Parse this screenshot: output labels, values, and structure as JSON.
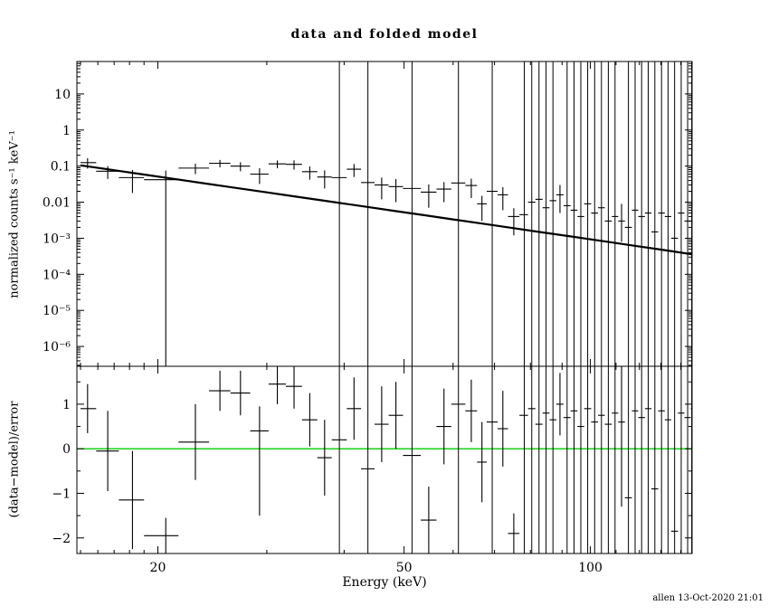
{
  "chart_data": {
    "type": "scatter",
    "title": "data and folded model",
    "xlabel": "Energy (keV)",
    "ylabel_top": "normalized counts s⁻¹ keV⁻¹",
    "ylabel_bottom": "(data−model)/error",
    "timestamp": "allen 13-Oct-2020 21:01",
    "x_scale": "log",
    "xlim": [
      14.8,
      146
    ],
    "xticks_major": [
      {
        "v": 20,
        "label": "20"
      },
      {
        "v": 50,
        "label": "50"
      },
      {
        "v": 100,
        "label": "100"
      }
    ],
    "xticks_minor": [
      15,
      16,
      17,
      18,
      19,
      30,
      40,
      60,
      70,
      80,
      90,
      110,
      120,
      130,
      140
    ],
    "top_panel": {
      "y_scale": "log",
      "ylim_log10": [
        -6.55,
        1.9
      ],
      "yticks": [
        {
          "v": 10,
          "label": "10"
        },
        {
          "v": 1,
          "label": "1"
        },
        {
          "v": 0.1,
          "label": "0.1"
        },
        {
          "v": 0.01,
          "label": "0.01"
        },
        {
          "v": 0.001,
          "label": "10⁻³"
        },
        {
          "v": 0.0001,
          "label": "10⁻⁴"
        },
        {
          "v": 1e-05,
          "label": "10⁻⁵"
        },
        {
          "v": 1e-06,
          "label": "10⁻⁶"
        }
      ],
      "model_points": [
        [
          15,
          0.105
        ],
        [
          17,
          0.0769
        ],
        [
          19,
          0.0583
        ],
        [
          21,
          0.0454
        ],
        [
          24,
          0.0326
        ],
        [
          27,
          0.0243
        ],
        [
          30,
          0.0187
        ],
        [
          34,
          0.0137
        ],
        [
          38,
          0.0104
        ],
        [
          43,
          0.00762
        ],
        [
          48,
          0.0058
        ],
        [
          54,
          0.00433
        ],
        [
          60,
          0.00333
        ],
        [
          67,
          0.00253
        ],
        [
          75,
          0.00191
        ],
        [
          84,
          0.00144
        ],
        [
          94,
          0.00109
        ],
        [
          105,
          0.000826
        ],
        [
          118,
          0.000617
        ],
        [
          132,
          0.000467
        ],
        [
          146,
          0.000358
        ]
      ]
    },
    "bottom_panel": {
      "ylim": [
        -2.35,
        1.85
      ],
      "yticks": [
        {
          "v": 1,
          "label": "1"
        },
        {
          "v": 0,
          "label": "0"
        },
        {
          "v": -1,
          "label": "−1"
        },
        {
          "v": -2,
          "label": "−2"
        }
      ],
      "yticks_minor": [
        -1.5,
        -0.5,
        0.5,
        1.5
      ],
      "zero_line_value": 0,
      "zero_line_color": "#00cc00"
    },
    "points_columns": [
      "x",
      "xlo",
      "xhi",
      "y",
      "ylo",
      "yhi",
      "y_err_offscale",
      "resid",
      "rlo",
      "rhi",
      "resid_err_offscale"
    ],
    "points": [
      [
        15.4,
        15.0,
        15.9,
        0.125,
        0.085,
        0.165,
        0,
        0.9,
        0.35,
        1.45,
        0
      ],
      [
        16.6,
        15.9,
        17.3,
        0.072,
        0.044,
        0.1,
        0,
        -0.05,
        -0.95,
        0.85,
        0
      ],
      [
        18.2,
        17.3,
        19.0,
        0.048,
        0.018,
        0.078,
        0,
        -1.15,
        -2.25,
        -0.05,
        0
      ],
      [
        20.6,
        19.0,
        21.6,
        0.042,
        1e-07,
        0.075,
        0,
        -1.95,
        -2.35,
        -1.55,
        0
      ],
      [
        23.0,
        21.6,
        24.2,
        0.088,
        0.06,
        0.116,
        0,
        0.15,
        -0.7,
        1.0,
        0
      ],
      [
        25.2,
        24.2,
        26.2,
        0.12,
        0.092,
        0.148,
        0,
        1.3,
        0.85,
        1.75,
        0
      ],
      [
        27.2,
        26.2,
        28.2,
        0.1,
        0.072,
        0.128,
        0,
        1.25,
        0.75,
        1.75,
        0
      ],
      [
        29.2,
        28.2,
        30.2,
        0.06,
        0.032,
        0.088,
        0,
        0.4,
        -1.5,
        0.95,
        0
      ],
      [
        31.2,
        30.2,
        32.2,
        0.115,
        0.087,
        0.143,
        0,
        1.45,
        1.0,
        1.85,
        0
      ],
      [
        33.2,
        32.2,
        34.2,
        0.112,
        0.08,
        0.144,
        0,
        1.4,
        0.9,
        1.85,
        0
      ],
      [
        35.2,
        34.2,
        36.2,
        0.07,
        0.042,
        0.098,
        0,
        0.65,
        0.05,
        1.25,
        0
      ],
      [
        37.2,
        36.2,
        38.2,
        0.05,
        0.024,
        0.076,
        0,
        -0.2,
        -1.05,
        0.65,
        0
      ],
      [
        39.3,
        38.2,
        40.4,
        0.048,
        null,
        null,
        1,
        0.2,
        null,
        null,
        1
      ],
      [
        41.5,
        40.4,
        42.6,
        0.082,
        0.05,
        0.114,
        0,
        0.9,
        0.2,
        1.6,
        0
      ],
      [
        43.7,
        42.6,
        44.8,
        0.035,
        null,
        null,
        1,
        -0.45,
        null,
        null,
        1
      ],
      [
        46.0,
        44.8,
        47.2,
        0.03,
        0.012,
        0.048,
        0,
        0.55,
        -0.3,
        1.4,
        0
      ],
      [
        48.5,
        47.2,
        49.8,
        0.027,
        0.01,
        0.044,
        0,
        0.75,
        0.0,
        1.5,
        0
      ],
      [
        51.5,
        49.8,
        53.2,
        0.024,
        null,
        null,
        1,
        -0.15,
        null,
        null,
        1
      ],
      [
        54.8,
        53.2,
        56.4,
        0.019,
        0.007,
        0.031,
        0,
        -1.6,
        -2.35,
        -0.85,
        0
      ],
      [
        58.0,
        56.4,
        59.6,
        0.023,
        0.01,
        0.036,
        0,
        0.5,
        -0.35,
        1.35,
        0
      ],
      [
        61.2,
        59.6,
        62.8,
        0.034,
        null,
        null,
        1,
        1.0,
        null,
        null,
        1
      ],
      [
        64.2,
        62.8,
        65.6,
        0.029,
        0.013,
        0.045,
        0,
        0.85,
        0.15,
        1.55,
        0
      ],
      [
        66.8,
        65.6,
        68.0,
        0.009,
        0.003,
        0.015,
        0,
        -0.3,
        -1.2,
        0.6,
        0
      ],
      [
        69.4,
        68.0,
        70.8,
        0.02,
        null,
        null,
        1,
        0.6,
        null,
        null,
        1
      ],
      [
        72.2,
        70.8,
        73.6,
        0.016,
        0.006,
        0.026,
        0,
        0.45,
        -0.4,
        1.3,
        0
      ],
      [
        75.2,
        73.6,
        76.8,
        0.004,
        0.0012,
        0.0068,
        0,
        -1.9,
        -2.35,
        -1.45,
        0
      ],
      [
        78.2,
        76.8,
        79.3,
        0.0045,
        null,
        null,
        1,
        0.75,
        null,
        null,
        1
      ],
      [
        80.4,
        79.3,
        81.5,
        0.01,
        null,
        null,
        1,
        0.9,
        null,
        null,
        1
      ],
      [
        82.6,
        81.5,
        83.7,
        0.012,
        null,
        null,
        1,
        0.55,
        null,
        null,
        1
      ],
      [
        84.8,
        83.7,
        85.9,
        0.007,
        null,
        null,
        1,
        0.8,
        null,
        null,
        1
      ],
      [
        87.0,
        85.9,
        88.1,
        0.011,
        null,
        null,
        1,
        0.65,
        null,
        null,
        1
      ],
      [
        89.3,
        88.1,
        90.5,
        0.016,
        0.005,
        0.03,
        0,
        1.0,
        0.3,
        1.7,
        0
      ],
      [
        91.7,
        90.5,
        92.9,
        0.008,
        null,
        null,
        1,
        0.7,
        null,
        null,
        1
      ],
      [
        94.1,
        92.9,
        95.3,
        0.006,
        null,
        null,
        1,
        0.85,
        null,
        null,
        1
      ],
      [
        96.5,
        95.3,
        97.7,
        0.004,
        null,
        null,
        1,
        0.5,
        null,
        null,
        1
      ],
      [
        99.0,
        97.7,
        100.3,
        0.009,
        null,
        null,
        1,
        0.9,
        null,
        null,
        1
      ],
      [
        101.6,
        100.3,
        102.9,
        0.005,
        null,
        null,
        1,
        0.6,
        null,
        null,
        1
      ],
      [
        104.2,
        102.9,
        105.5,
        0.007,
        null,
        null,
        1,
        0.75,
        null,
        null,
        1
      ],
      [
        106.9,
        105.5,
        108.3,
        0.003,
        null,
        null,
        1,
        0.55,
        null,
        null,
        1
      ],
      [
        109.6,
        108.3,
        110.9,
        0.004,
        null,
        null,
        1,
        0.8,
        null,
        null,
        1
      ],
      [
        112.3,
        110.9,
        113.7,
        0.003,
        0.0008,
        0.009,
        0,
        0.6,
        -1.3,
        1.85,
        0
      ],
      [
        115.2,
        113.7,
        116.7,
        0.002,
        null,
        null,
        1,
        -1.1,
        null,
        null,
        1
      ],
      [
        118.1,
        116.7,
        119.5,
        0.006,
        null,
        null,
        1,
        0.85,
        null,
        null,
        1
      ],
      [
        121.0,
        119.5,
        122.5,
        0.004,
        null,
        null,
        1,
        0.7,
        null,
        null,
        1
      ],
      [
        124.0,
        122.5,
        125.5,
        0.005,
        null,
        null,
        1,
        0.9,
        null,
        null,
        1
      ],
      [
        127.1,
        125.5,
        128.7,
        0.0015,
        null,
        null,
        1,
        -0.9,
        null,
        null,
        1
      ],
      [
        130.3,
        128.7,
        131.9,
        0.005,
        null,
        null,
        1,
        0.85,
        null,
        null,
        1
      ],
      [
        133.5,
        131.9,
        135.1,
        0.004,
        null,
        null,
        1,
        0.65,
        null,
        null,
        1
      ],
      [
        136.8,
        135.1,
        138.5,
        0.001,
        null,
        null,
        1,
        -1.85,
        null,
        null,
        1
      ],
      [
        140.2,
        138.5,
        141.9,
        0.005,
        null,
        null,
        1,
        0.8,
        null,
        null,
        1
      ],
      [
        143.6,
        141.9,
        145.3,
        0.003,
        null,
        null,
        1,
        0.7,
        null,
        null,
        1
      ],
      [
        145.8,
        145.3,
        146.0,
        0.004,
        null,
        null,
        1,
        0.9,
        null,
        null,
        1
      ]
    ]
  }
}
